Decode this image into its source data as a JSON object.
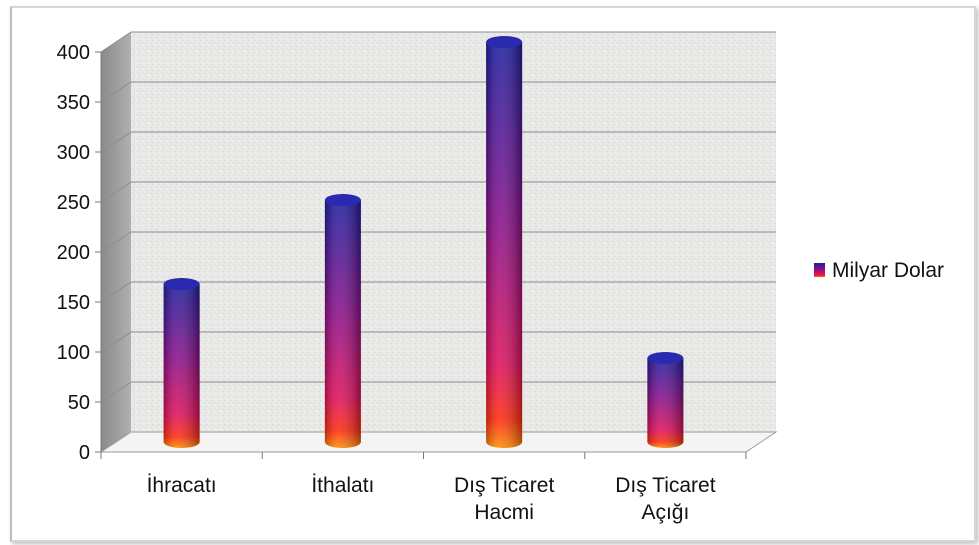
{
  "chart_data": {
    "type": "bar",
    "style": "3d-cylinder",
    "categories": [
      [
        "İhracatı"
      ],
      [
        "İthalatı"
      ],
      [
        "Dış Ticaret",
        "Hacmi"
      ],
      [
        "Dış Ticaret",
        "Açığı"
      ]
    ],
    "series": [
      {
        "name": "Milyar Dolar",
        "values": [
          158,
          242,
          400,
          84
        ]
      }
    ],
    "title": "",
    "xlabel": "",
    "ylabel": "",
    "ylim": [
      0,
      400
    ],
    "yticks": [
      0,
      50,
      100,
      150,
      200,
      250,
      300,
      350,
      400
    ],
    "grid": true,
    "legend": "right",
    "colors": {
      "top": "#1a1a99",
      "mid": "#cc0066",
      "bottom": "#ff2200",
      "base": "#ff9900",
      "wall": "#e8e8e8",
      "side": "#9a9a9a"
    }
  }
}
